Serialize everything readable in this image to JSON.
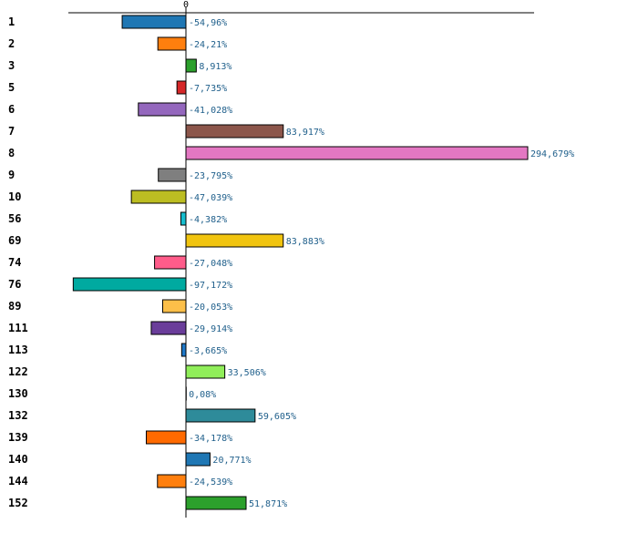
{
  "chart_data": {
    "type": "bar",
    "orientation": "horizontal",
    "title": "",
    "xlabel": "",
    "ylabel": "",
    "zero_tick_label": "0",
    "xlim": [
      -100,
      304
    ],
    "categories": [
      "1",
      "2",
      "3",
      "5",
      "6",
      "7",
      "8",
      "9",
      "10",
      "56",
      "69",
      "74",
      "76",
      "89",
      "111",
      "113",
      "122",
      "130",
      "132",
      "139",
      "140",
      "144",
      "152"
    ],
    "values": [
      -54.96,
      -24.21,
      8.913,
      -7.735,
      -41.028,
      83.917,
      294.679,
      -23.795,
      -47.039,
      -4.382,
      83.883,
      -27.048,
      -97.172,
      -20.053,
      -29.914,
      -3.665,
      33.506,
      0.08,
      59.605,
      -34.178,
      20.771,
      -24.539,
      51.871
    ],
    "value_labels": [
      "-54,96%",
      "-24,21%",
      "8,913%",
      "-7,735%",
      "-41,028%",
      "83,917%",
      "294,679%",
      "-23,795%",
      "-47,039%",
      "-4,382%",
      "83,883%",
      "-27,048%",
      "-97,172%",
      "-20,053%",
      "-29,914%",
      "-3,665%",
      "33,506%",
      "0,08%",
      "59,605%",
      "-34,178%",
      "20,771%",
      "-24,539%",
      "51,871%"
    ],
    "colors": [
      "#1f77b4",
      "#ff7f0e",
      "#2ca02c",
      "#d62728",
      "#9467bd",
      "#8c564b",
      "#e377c2",
      "#7f7f7f",
      "#bcbd22",
      "#17becf",
      "#f1c40f",
      "#ff5c8a",
      "#00aaa0",
      "#fcbf49",
      "#6a3d9a",
      "#1f78c8",
      "#90ee5a",
      "#f4a6b0",
      "#2e8b9a",
      "#ff6a00",
      "#1f77b4",
      "#ff7f0e",
      "#2ca02c"
    ]
  }
}
